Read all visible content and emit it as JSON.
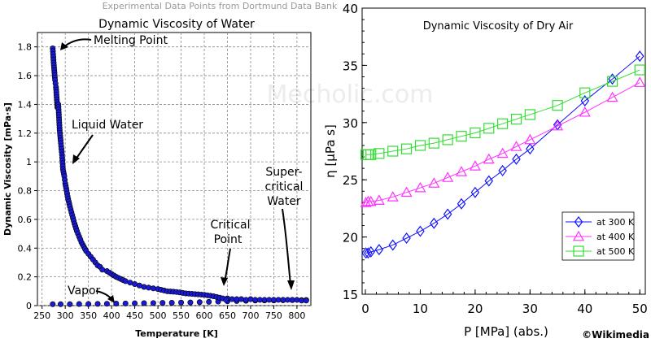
{
  "header": {
    "caption": "Experimental Data Points from Dortmund Data Bank"
  },
  "watermark": "Mecholic.com",
  "credit": "©Wikimedia",
  "chart_data": [
    {
      "type": "scatter",
      "title": "Dynamic Viscosity of Water",
      "xlabel": "Temperature [K]",
      "ylabel": "Dynamic Viscosity [mPa·s]",
      "xlim": [
        240,
        830
      ],
      "ylim": [
        0,
        1.9
      ],
      "xticks": [
        "250",
        "300",
        "350",
        "400",
        "450",
        "500",
        "550",
        "600",
        "650",
        "700",
        "750",
        "800"
      ],
      "yticks": [
        "0",
        "0.2",
        "0.4",
        "0.6",
        "0.8",
        "1",
        "1.2",
        "1.4",
        "1.6",
        "1.8"
      ],
      "grid": true,
      "point_color": "#1a1ad6",
      "annotations": [
        {
          "text": "Melting Point",
          "x": 273,
          "y": 1.79
        },
        {
          "text": "Liquid Water",
          "x": 300,
          "y": 0.95
        },
        {
          "text": "Vapor",
          "x": 395,
          "y": 0.02
        },
        {
          "text": "Critical",
          "x": 647,
          "y": 0.04
        },
        {
          "text": "Point",
          "x": 647,
          "y": 0.04
        },
        {
          "text": "Super-",
          "x": 795,
          "y": 0.04
        },
        {
          "text": "critical",
          "x": 795,
          "y": 0.04
        },
        {
          "text": "Water",
          "x": 795,
          "y": 0.04
        }
      ],
      "liquid_curve": {
        "x": [
          273,
          275,
          278,
          280,
          283,
          285,
          288,
          290,
          293,
          295,
          298,
          300,
          303,
          305,
          310,
          315,
          320,
          325,
          330,
          335,
          340,
          345,
          350,
          355,
          360,
          365,
          370,
          375,
          380,
          390,
          400,
          410,
          420,
          430,
          440,
          450,
          460,
          470,
          480,
          490,
          500,
          520,
          540,
          560,
          580,
          600,
          620,
          640,
          647
        ],
        "y": [
          1.79,
          1.69,
          1.57,
          1.52,
          1.38,
          1.4,
          1.22,
          1.15,
          1.05,
          0.95,
          0.9,
          0.85,
          0.8,
          0.76,
          0.69,
          0.63,
          0.57,
          0.52,
          0.48,
          0.44,
          0.41,
          0.38,
          0.36,
          0.34,
          0.32,
          0.3,
          0.28,
          0.27,
          0.25,
          0.24,
          0.22,
          0.2,
          0.185,
          0.17,
          0.16,
          0.15,
          0.14,
          0.13,
          0.125,
          0.12,
          0.115,
          0.1,
          0.095,
          0.085,
          0.08,
          0.075,
          0.065,
          0.05,
          0.04
        ]
      },
      "vapor_points": {
        "x": [
          273,
          290,
          310,
          330,
          350,
          370,
          390,
          410,
          430,
          450,
          470,
          490,
          510,
          530,
          550,
          570,
          590,
          610,
          630,
          650,
          670,
          690,
          710,
          730,
          750,
          770,
          790,
          810,
          820
        ],
        "y": [
          0.01,
          0.01,
          0.01,
          0.011,
          0.011,
          0.012,
          0.013,
          0.014,
          0.015,
          0.016,
          0.017,
          0.018,
          0.019,
          0.02,
          0.021,
          0.022,
          0.024,
          0.026,
          0.028,
          0.03,
          0.032,
          0.034,
          0.035,
          0.036,
          0.036,
          0.037,
          0.038,
          0.038,
          0.039
        ]
      },
      "supercritical_points": {
        "x": [
          650,
          660,
          670,
          680,
          690,
          700,
          710,
          720,
          730,
          740,
          750,
          760,
          770,
          780,
          790,
          800,
          810,
          820
        ],
        "y": [
          0.05,
          0.045,
          0.045,
          0.045,
          0.04,
          0.045,
          0.04,
          0.04,
          0.04,
          0.04,
          0.04,
          0.04,
          0.04,
          0.04,
          0.04,
          0.04,
          0.035,
          0.035
        ]
      }
    },
    {
      "type": "line",
      "title": "Dynamic Viscosity of Dry Air",
      "xlabel": "P [MPa] (abs.)",
      "ylabel": "η [μPa s]",
      "xlim": [
        0,
        51
      ],
      "ylim": [
        15,
        40
      ],
      "xticks": [
        "0",
        "10",
        "20",
        "30",
        "40",
        "50"
      ],
      "yticks": [
        "15",
        "20",
        "25",
        "30",
        "35",
        "40"
      ],
      "grid": false,
      "legend": "bottom-right",
      "series": [
        {
          "name": "at 300 K",
          "color": "#1010ff",
          "marker": "diamond",
          "x": [
            0.1,
            0.5,
            1,
            2.5,
            5,
            7.5,
            10,
            12.5,
            15,
            17.5,
            20,
            22.5,
            25,
            27.5,
            30,
            35,
            40,
            45,
            50
          ],
          "y": [
            18.6,
            18.6,
            18.7,
            18.9,
            19.3,
            19.9,
            20.5,
            21.2,
            22.0,
            22.9,
            23.9,
            24.9,
            25.8,
            26.8,
            27.7,
            29.8,
            31.9,
            33.8,
            35.8
          ]
        },
        {
          "name": "at 400 K",
          "color": "#ff33ff",
          "marker": "triangle",
          "x": [
            0.1,
            0.5,
            1,
            2.5,
            5,
            7.5,
            10,
            12.5,
            15,
            17.5,
            20,
            22.5,
            25,
            27.5,
            30,
            35,
            40,
            45,
            50
          ],
          "y": [
            23.0,
            23.1,
            23.1,
            23.2,
            23.5,
            23.9,
            24.3,
            24.7,
            25.2,
            25.7,
            26.2,
            26.8,
            27.3,
            27.9,
            28.5,
            29.7,
            30.9,
            32.2,
            33.5
          ]
        },
        {
          "name": "at 500 K",
          "color": "#33dd33",
          "marker": "square",
          "x": [
            0.1,
            0.5,
            1,
            2.5,
            5,
            7.5,
            10,
            12.5,
            15,
            17.5,
            20,
            22.5,
            25,
            27.5,
            30,
            35,
            40,
            45,
            50
          ],
          "y": [
            27.2,
            27.2,
            27.2,
            27.3,
            27.5,
            27.7,
            28.0,
            28.2,
            28.5,
            28.8,
            29.1,
            29.5,
            29.9,
            30.3,
            30.7,
            31.5,
            32.6,
            33.6,
            34.6
          ]
        }
      ]
    }
  ]
}
